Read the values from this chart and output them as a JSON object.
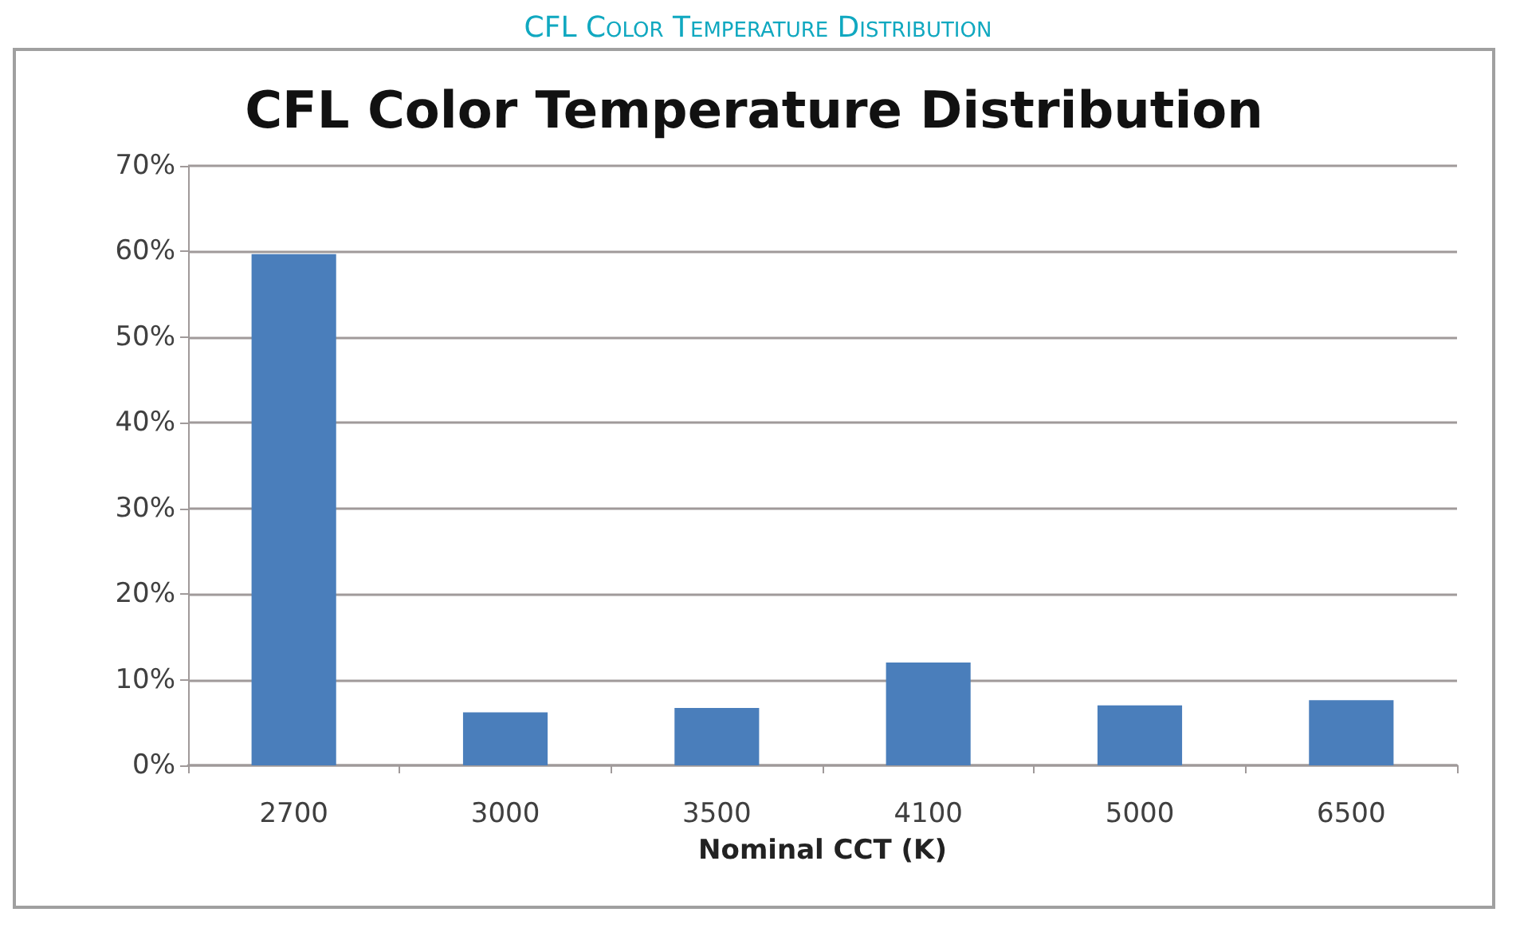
{
  "chart_data": {
    "type": "bar",
    "title": "CFL Color Temperature Distribution",
    "subtitle": "CFL Color Temperature Distribution",
    "xlabel": "Nominal CCT (K)",
    "categories": [
      "2700",
      "3000",
      "3500",
      "4100",
      "5000",
      "6500"
    ],
    "values": [
      59.7,
      6.2,
      6.7,
      12,
      7,
      7.6
    ],
    "color": "#4a7ebb",
    "ylim": [
      0,
      70
    ],
    "yticks": [
      {
        "value": 0,
        "label": "0%"
      },
      {
        "value": 10,
        "label": "10%"
      },
      {
        "value": 20,
        "label": "20%"
      },
      {
        "value": 30,
        "label": "30%"
      },
      {
        "value": 40,
        "label": "40%"
      },
      {
        "value": 50,
        "label": "50%"
      },
      {
        "value": 60,
        "label": "60%"
      },
      {
        "value": 70,
        "label": "70%"
      }
    ],
    "grid": "y"
  }
}
